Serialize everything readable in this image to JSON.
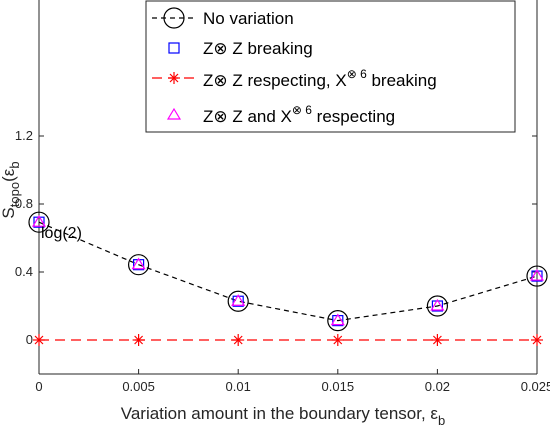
{
  "chart_data": {
    "type": "line",
    "xlabel": "Variation amount in the boundary tensor, ε",
    "xlabel_sub": "b",
    "ylabel": "S",
    "ylabel_sub": "topo",
    "ylabel_paren": "(ε",
    "ylabel_paren_sub": "b",
    "xlim": [
      0,
      0.025
    ],
    "ylim": [
      -0.2,
      2.0
    ],
    "xticks": [
      "0",
      "0.005",
      "0.01",
      "0.015",
      "0.02",
      "0.025"
    ],
    "xtick_values": [
      0,
      0.005,
      0.01,
      0.015,
      0.02,
      0.025
    ],
    "yticks": [
      "0",
      "0.4",
      "0.8",
      "1.2"
    ],
    "ytick_values": [
      0,
      0.4,
      0.8,
      1.2
    ],
    "grid": false,
    "legend_position": "top-right",
    "x": [
      0,
      0.005,
      0.01,
      0.015,
      0.02,
      0.025
    ],
    "series": [
      {
        "name": "No variation",
        "values": [
          0.693,
          0.443,
          0.228,
          0.114,
          0.2,
          0.376
        ],
        "color": "#000000",
        "line": "dashed",
        "marker": "circle"
      },
      {
        "name": "Z⊗ Z breaking",
        "values": [
          0.693,
          0.443,
          0.228,
          0.114,
          0.2,
          0.376
        ],
        "color": "#0000ff",
        "line": "none",
        "marker": "square"
      },
      {
        "name": "Z⊗ Z respecting, X⊗6 breaking",
        "legend_main": "Z⊗ Z respecting, X",
        "legend_sup": "⊗ 6",
        "legend_tail": " breaking",
        "values": [
          0,
          0,
          0,
          0,
          0,
          0
        ],
        "color": "#ff0000",
        "line": "dashed",
        "marker": "asterisk"
      },
      {
        "name": "Z⊗ Z and X⊗6 respecting",
        "legend_main": "Z⊗ Z and X",
        "legend_sup": "⊗ 6",
        "legend_tail": " respecting",
        "values": [
          0.693,
          0.443,
          0.228,
          0.114,
          0.2,
          0.376
        ],
        "color": "#ff00ff",
        "line": "none",
        "marker": "triangle"
      }
    ],
    "annotations": [
      {
        "text": "log(2)",
        "x": 0,
        "y": 0.693
      }
    ]
  }
}
